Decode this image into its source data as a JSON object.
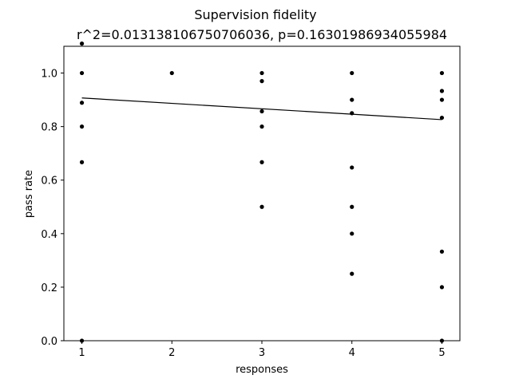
{
  "chart_data": {
    "type": "scatter",
    "title": "Supervision fidelity",
    "subtitle": "r^2=0.013138106750706036, p=0.16301986934055984",
    "xlabel": "responses",
    "ylabel": "pass rate",
    "xlim": [
      0.8,
      5.2
    ],
    "ylim": [
      0.0,
      1.1
    ],
    "x_ticks": [
      1,
      2,
      3,
      4,
      5
    ],
    "x_tick_labels": [
      "1",
      "2",
      "3",
      "4",
      "5"
    ],
    "y_ticks": [
      0.0,
      0.2,
      0.4,
      0.6,
      0.8,
      1.0
    ],
    "y_tick_labels": [
      "0.0",
      "0.2",
      "0.4",
      "0.6",
      "0.8",
      "1.0"
    ],
    "grid": false,
    "point_color": "#000000",
    "points": [
      {
        "x": 1,
        "y": 1.11
      },
      {
        "x": 1,
        "y": 1.0
      },
      {
        "x": 1,
        "y": 0.889
      },
      {
        "x": 1,
        "y": 0.8
      },
      {
        "x": 1,
        "y": 0.667
      },
      {
        "x": 1,
        "y": 0.0
      },
      {
        "x": 2,
        "y": 1.0
      },
      {
        "x": 3,
        "y": 1.0
      },
      {
        "x": 3,
        "y": 0.97
      },
      {
        "x": 3,
        "y": 0.857
      },
      {
        "x": 3,
        "y": 0.8
      },
      {
        "x": 3,
        "y": 0.667
      },
      {
        "x": 3,
        "y": 0.5
      },
      {
        "x": 4,
        "y": 1.0
      },
      {
        "x": 4,
        "y": 0.9
      },
      {
        "x": 4,
        "y": 0.85
      },
      {
        "x": 4,
        "y": 0.647
      },
      {
        "x": 4,
        "y": 0.5
      },
      {
        "x": 4,
        "y": 0.4
      },
      {
        "x": 4,
        "y": 0.25
      },
      {
        "x": 5,
        "y": 1.0
      },
      {
        "x": 5,
        "y": 0.933
      },
      {
        "x": 5,
        "y": 0.9
      },
      {
        "x": 5,
        "y": 0.833
      },
      {
        "x": 5,
        "y": 0.333
      },
      {
        "x": 5,
        "y": 0.2
      },
      {
        "x": 5,
        "y": 0.0
      }
    ],
    "fit_line": {
      "color": "#000000",
      "x": [
        1,
        5
      ],
      "y": [
        0.907,
        0.826
      ]
    }
  }
}
